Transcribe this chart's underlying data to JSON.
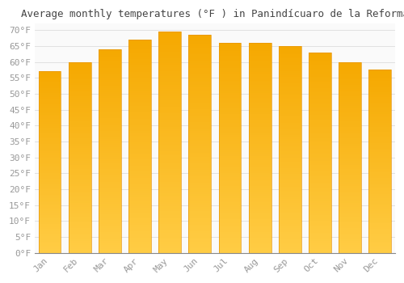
{
  "title": "Average monthly temperatures (°F ) in Panindícuaro de la Reforma",
  "months": [
    "Jan",
    "Feb",
    "Mar",
    "Apr",
    "May",
    "Jun",
    "Jul",
    "Aug",
    "Sep",
    "Oct",
    "Nov",
    "Dec"
  ],
  "values": [
    57,
    60,
    64,
    67,
    69.5,
    68.5,
    66,
    66,
    65,
    63,
    60,
    57.5
  ],
  "bar_color_bottom": "#FFCC44",
  "bar_color_top": "#F5A800",
  "bar_edge_color": "#E8960A",
  "background_color": "#FFFFFF",
  "plot_bg_color": "#FAFAFA",
  "grid_color": "#DDDDDD",
  "ylim": [
    0,
    72
  ],
  "yticks": [
    0,
    5,
    10,
    15,
    20,
    25,
    30,
    35,
    40,
    45,
    50,
    55,
    60,
    65,
    70
  ],
  "title_fontsize": 9,
  "tick_fontsize": 8,
  "tick_font_color": "#999999",
  "title_font_color": "#444444",
  "bar_width": 0.75
}
